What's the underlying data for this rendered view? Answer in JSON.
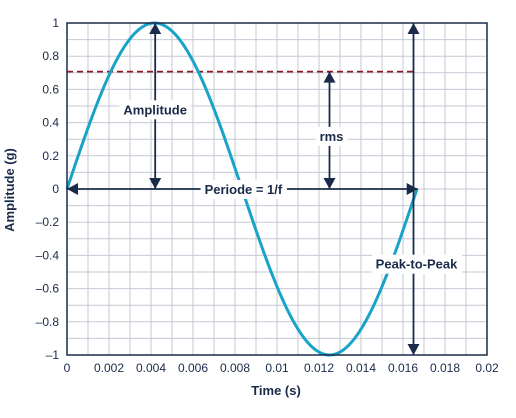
{
  "chart_data": {
    "type": "line",
    "xlabel": "Time (s)",
    "ylabel": "Amplitude (g)",
    "xlim": [
      0,
      0.02
    ],
    "ylim": [
      -1,
      1
    ],
    "xticks": [
      0,
      0.002,
      0.004,
      0.006,
      0.008,
      0.01,
      0.012,
      0.014,
      0.016,
      0.018,
      0.02
    ],
    "yticks": [
      1,
      0.8,
      0.6,
      0.4,
      0.2,
      0,
      -0.2,
      -0.4,
      -0.6,
      -0.8,
      -1
    ],
    "xtick_labels": [
      "0",
      "0.002",
      "0.004",
      "0.006",
      "0.008",
      "0.01",
      "0.012",
      "0.014",
      "0.016",
      "0.018",
      "0.02"
    ],
    "ytick_labels": [
      "1",
      "0.8",
      "0.6",
      "0.4",
      "0.2",
      "0",
      "–0.2",
      "–0.4",
      "–0.6",
      "–0.8",
      "–1"
    ],
    "grid": true,
    "series": [
      {
        "kind": "sine",
        "amplitude": 1,
        "frequency_hz": 60,
        "x_start": 0,
        "x_end": 0.01667,
        "color": "#1aa3c8"
      }
    ],
    "reference_lines": [
      {
        "kind": "rms",
        "y": 0.707,
        "x_start": 0,
        "x_end": 0.0165,
        "color": "#8b1a2b",
        "style": "dashed"
      }
    ],
    "annotations": {
      "amplitude": {
        "text": "Amplitude",
        "x": 0.0042,
        "y_from": 0,
        "y_to": 1
      },
      "rms": {
        "text": "rms",
        "x": 0.0125,
        "y_from": 0,
        "y_to": 0.707
      },
      "periode": {
        "text": "Periode = 1/f",
        "x_from": 0,
        "x_to": 0.0167,
        "y": 0
      },
      "peak_to_peak": {
        "text": "Peak-to-Peak",
        "x": 0.0165,
        "y_from": -1,
        "y_to": 1
      }
    },
    "colors": {
      "axis": "#1a2b4a",
      "grid": "#c5c9d6",
      "arrow": "#1a2b4a"
    }
  }
}
